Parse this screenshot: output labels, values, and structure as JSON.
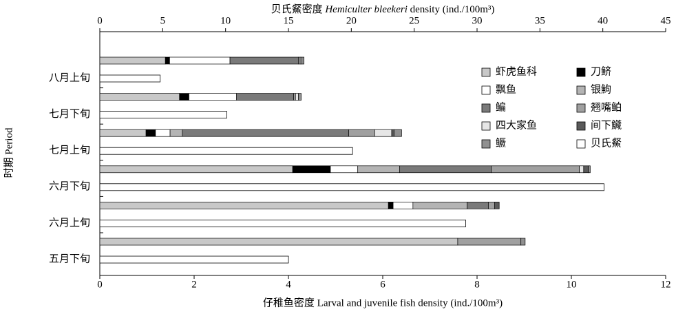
{
  "chart_data": {
    "type": "stacked-bar-horizontal",
    "x2label": [
      "贝氏䱗密度 ",
      "Hemiculter bleekeri",
      " density (ind./100m³)"
    ],
    "xlabel": "仔稚鱼密度 Larval and juvenile fish density (ind./100m³)",
    "ylabel": "时期 Period",
    "categories": [
      "五月下旬",
      "六月上旬",
      "六月下旬",
      "七月上旬",
      "七月下旬",
      "八月上旬"
    ],
    "xlim": [
      0,
      12
    ],
    "xticks": [
      0,
      2,
      4,
      6,
      8,
      10,
      12
    ],
    "x2lim": [
      0,
      45
    ],
    "x2ticks": [
      0,
      5,
      10,
      15,
      20,
      25,
      30,
      35,
      40,
      45
    ],
    "series": [
      {
        "name": "虾虎鱼科",
        "color": "#c8c8c8",
        "values": [
          7.59,
          6.12,
          4.09,
          0.98,
          1.69,
          1.39
        ]
      },
      {
        "name": "刀鲚",
        "color": "#000000",
        "values": [
          0,
          0.1,
          0.8,
          0.2,
          0.2,
          0.09
        ]
      },
      {
        "name": "飘鱼",
        "color": "#ffffff",
        "values": [
          0,
          0.42,
          0.58,
          0.31,
          1.01,
          1.28
        ]
      },
      {
        "name": "银鮈",
        "color": "#b4b4b4",
        "values": [
          0,
          1.15,
          0.89,
          0.26,
          0,
          0
        ]
      },
      {
        "name": "鳊",
        "color": "#7a7a7a",
        "values": [
          0,
          0.45,
          1.94,
          3.53,
          1.21,
          1.45
        ]
      },
      {
        "name": "翘嘴鲌",
        "color": "#a0a0a0",
        "values": [
          1.34,
          0.13,
          1.87,
          0.55,
          0.04,
          0.04
        ]
      },
      {
        "name": "四大家鱼",
        "color": "#e6e6e6",
        "values": [
          0,
          0,
          0.09,
          0.36,
          0.06,
          0.03
        ]
      },
      {
        "name": "间下鱵",
        "color": "#5a5a5a",
        "values": [
          0,
          0.1,
          0.1,
          0.05,
          0,
          0
        ]
      },
      {
        "name": "鳜",
        "color": "#909090",
        "values": [
          0.09,
          0,
          0.04,
          0.16,
          0.06,
          0.05
        ]
      },
      {
        "name": "贝氏䱗",
        "color": "#ffffff",
        "axis": "x2",
        "values": [
          15.0,
          29.1,
          40.1,
          20.1,
          10.1,
          4.8
        ]
      }
    ]
  }
}
